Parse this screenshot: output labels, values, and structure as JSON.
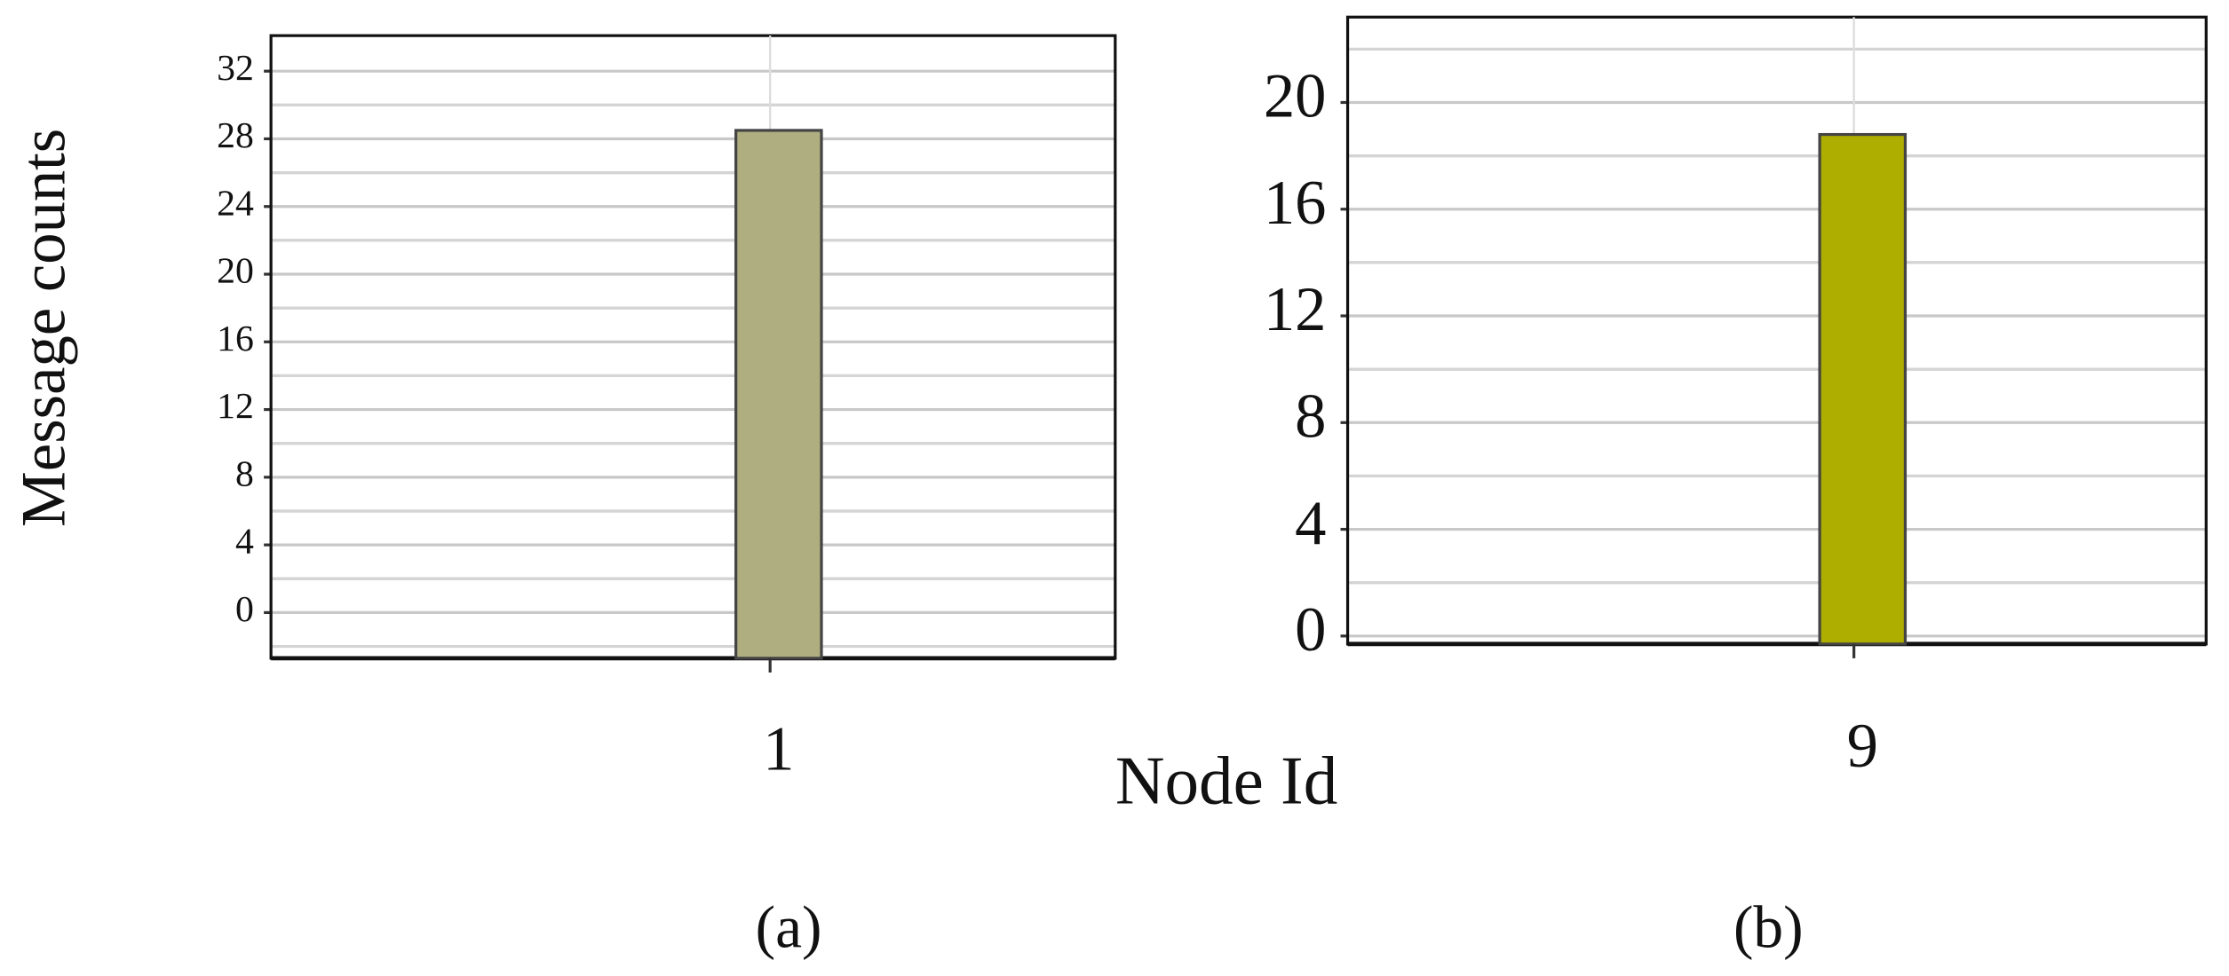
{
  "chart_data": [
    {
      "type": "bar",
      "ylabel": "Message counts",
      "xlabel": "Node Id",
      "caption": "(a)",
      "categories": [
        "1"
      ],
      "values": [
        28.5
      ],
      "color": "#aeae80",
      "ylim": [
        -2.7,
        34.1
      ],
      "yticks": [
        0,
        4,
        8,
        12,
        16,
        20,
        24,
        28,
        32
      ],
      "grid": true
    },
    {
      "type": "bar",
      "caption": "(b)",
      "categories": [
        "9"
      ],
      "values": [
        18.8
      ],
      "color": "#aeae00",
      "ylim": [
        -0.3,
        23.2
      ],
      "yticks": [
        0,
        4,
        8,
        12,
        16,
        20
      ],
      "grid": true
    }
  ]
}
